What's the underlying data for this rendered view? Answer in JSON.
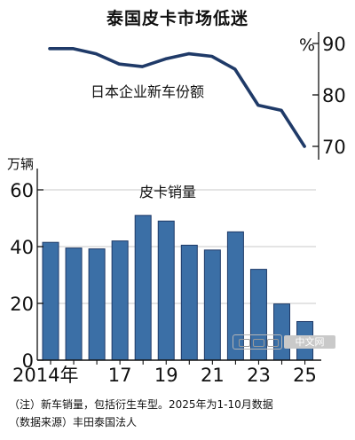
{
  "title": "泰国皮卡市场低迷",
  "chart_data": [
    {
      "type": "line",
      "label": "日本企业新车份额",
      "unit": "%",
      "x": [
        "2014",
        "2015",
        "2016",
        "2017",
        "2018",
        "2019",
        "2020",
        "2021",
        "2022",
        "2023",
        "2024",
        "2025"
      ],
      "values": [
        89,
        89,
        88,
        86,
        85.5,
        87,
        88,
        87.5,
        85,
        78,
        77,
        70
      ],
      "ylim": [
        67,
        92
      ],
      "yticks": [
        90,
        80,
        70
      ],
      "color": "#1f3a68"
    },
    {
      "type": "bar",
      "title": "皮卡销量",
      "unit": "万辆",
      "x": [
        "2014",
        "2015",
        "2016",
        "2017",
        "2018",
        "2019",
        "2020",
        "2021",
        "2022",
        "2023",
        "2024",
        "2025"
      ],
      "values": [
        41.5,
        39.5,
        39.2,
        42,
        51,
        49,
        40.5,
        38.8,
        45.2,
        32,
        19.8,
        13.6
      ],
      "ylim": [
        0,
        66
      ],
      "yticks": [
        0,
        20,
        40,
        60
      ],
      "xticklabels": [
        "2014年",
        "",
        "",
        "17",
        "",
        "19",
        "",
        "21",
        "",
        "23",
        "",
        "25"
      ],
      "color": "#3b6fa6",
      "edgecolor": "#1f3a68"
    }
  ],
  "note": {
    "line1": "（注）新车销量，包括衍生车型。2025年为1-10月数据",
    "line2": "（数据来源）丰田泰国法人"
  },
  "watermark": {
    "text": "中文网"
  },
  "colors": {
    "axis": "#111111",
    "grid": "#c8c8c8"
  }
}
